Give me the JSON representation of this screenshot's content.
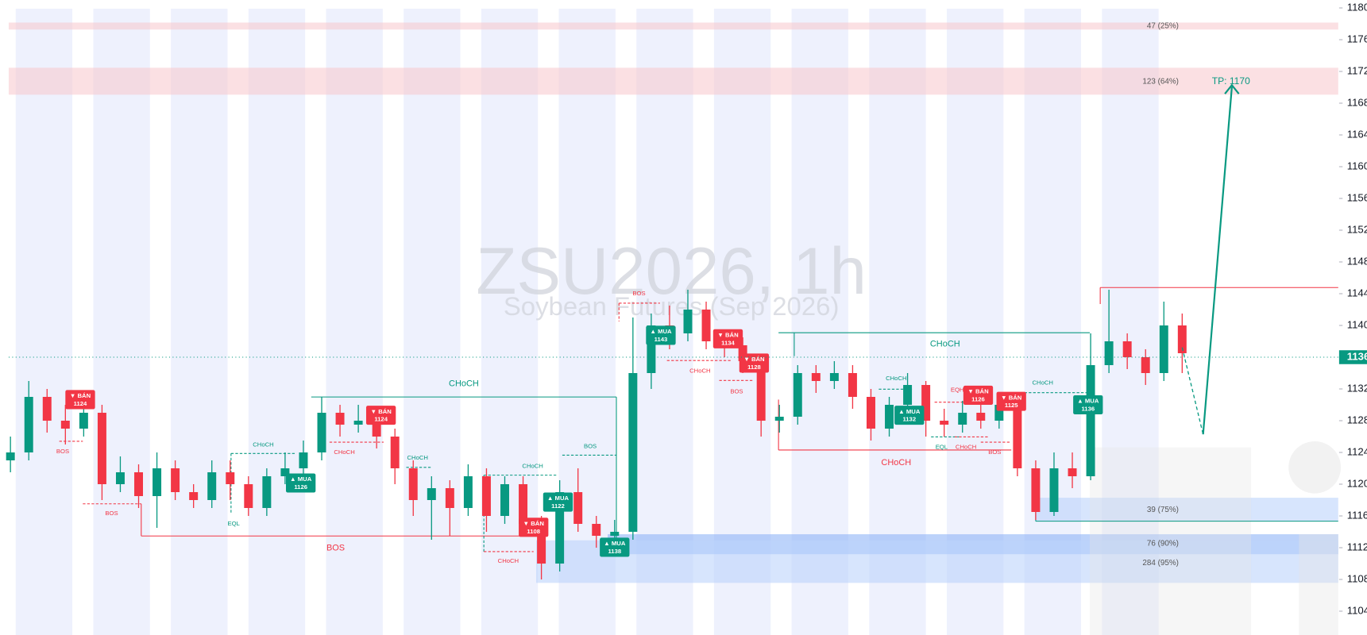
{
  "chart_data": {
    "type": "candlestick",
    "title": "ZSU2026, 1h",
    "subtitle": "Soybean Futures (Sep 2026)",
    "up_color": "#089981",
    "down_color": "#f23645",
    "ylim": [
      1101,
      1181
    ],
    "yticks": [
      1104,
      1108,
      1112,
      1116,
      1120,
      1124,
      1128,
      1132,
      1136,
      1140,
      1144,
      1148,
      1152,
      1156,
      1160,
      1164,
      1168,
      1172,
      1176,
      1180
    ],
    "open": [
      1123,
      1124,
      1131,
      1128,
      1127,
      1129,
      1120,
      1121.5,
      1118.5,
      1122,
      1119,
      1118,
      1121.5,
      1120,
      1117,
      1121,
      1122,
      1124,
      1129,
      1127.5,
      1128,
      1126,
      1122,
      1118,
      1119.5,
      1117,
      1121,
      1116,
      1120,
      1115,
      1110,
      1119,
      1115,
      1113.5,
      1114,
      1134,
      1140,
      1139,
      1142,
      1138,
      1137.5,
      1135.5,
      1128,
      1128.5,
      1134,
      1133,
      1134,
      1131,
      1127,
      1130,
      1132.5,
      1128,
      1127.5,
      1129,
      1128,
      1130,
      1122,
      1116.5,
      1122,
      1121,
      1135,
      1138,
      1136,
      1134,
      1140
    ],
    "high": [
      1126,
      1133,
      1132,
      1130,
      1131,
      1130,
      1123.5,
      1122.5,
      1124,
      1123,
      1120,
      1123,
      1123,
      1121,
      1122,
      1124,
      1125.5,
      1131,
      1130,
      1130,
      1129.5,
      1127,
      1123,
      1121,
      1120.5,
      1122.5,
      1122,
      1121,
      1121,
      1116,
      1120.5,
      1122,
      1116,
      1115.5,
      1141,
      1141.5,
      1142.5,
      1144.5,
      1143,
      1139.5,
      1138.5,
      1136,
      1130,
      1135,
      1135,
      1135.5,
      1135,
      1132,
      1131,
      1134,
      1133,
      1129.5,
      1130.5,
      1131,
      1131.5,
      1131,
      1123,
      1124,
      1124,
      1139,
      1144.5,
      1139,
      1137,
      1143,
      1141.5
    ],
    "low": [
      1121.5,
      1123,
      1126.5,
      1125,
      1126,
      1118,
      1119,
      1117,
      1114.5,
      1118,
      1117,
      1117,
      1118,
      1116,
      1116,
      1120,
      1121,
      1123,
      1126,
      1126.5,
      1124.5,
      1120,
      1116,
      1113,
      1113.5,
      1116,
      1114,
      1115,
      1113.5,
      1108,
      1109,
      1114,
      1112,
      1112.5,
      1113,
      1132,
      1137,
      1138,
      1137,
      1136,
      1134,
      1126,
      1126.5,
      1127.5,
      1131.5,
      1132,
      1129.5,
      1125.5,
      1126,
      1129,
      1126,
      1126,
      1126.5,
      1127,
      1127,
      1121,
      1115.5,
      1116,
      1119.5,
      1120.5,
      1134,
      1134.5,
      1132.5,
      1133,
      1134
    ],
    "close": [
      1124,
      1131,
      1128,
      1127,
      1129,
      1120,
      1121.5,
      1118.5,
      1122,
      1119,
      1118,
      1121.5,
      1120,
      1117,
      1121,
      1122,
      1124,
      1129,
      1127.5,
      1128,
      1126,
      1122,
      1118,
      1119.5,
      1117,
      1121,
      1116,
      1120,
      1115,
      1110,
      1119,
      1115,
      1113.5,
      1114,
      1134,
      1140,
      1139,
      1142,
      1138,
      1137.5,
      1135.5,
      1128,
      1128.5,
      1134,
      1133,
      1134,
      1131,
      1127,
      1130,
      1132.5,
      1128,
      1127.5,
      1129,
      1128,
      1130,
      1122,
      1116.5,
      1122,
      1121,
      1135,
      1138,
      1136,
      1134,
      1140,
      1136.5
    ],
    "last_price": 1136,
    "signals": [
      {
        "label": "▼ BÁN",
        "price": 1124
      },
      {
        "label": "▼ BÁN",
        "price": 1124
      },
      {
        "label": "▲ MUA",
        "price": 1126
      },
      {
        "label": "▲ MUA",
        "price": 1122
      },
      {
        "label": "▼ BÁN",
        "price": 1108
      },
      {
        "label": "▲ MUA",
        "price": 1138
      },
      {
        "label": "▲ MUA",
        "price": 1143
      },
      {
        "label": "▼ BÁN",
        "price": 1134
      },
      {
        "label": "▼ BÁN",
        "price": 1128
      },
      {
        "label": "▲ MUA",
        "price": 1132
      },
      {
        "label": "▼ BÁN",
        "price": 1126
      },
      {
        "label": "▼ BÁN",
        "price": 1125
      },
      {
        "label": "▲ MUA",
        "price": 1136
      }
    ],
    "structure_labels": [
      "BOS",
      "BOS",
      "EQL",
      "CHoCH",
      "BOS",
      "CHoCH",
      "CHoCH",
      "CHoCH",
      "CHoCH",
      "CHoCH",
      "BOS",
      "BOS",
      "CHoCH",
      "BOS",
      "CHoCH",
      "CHoCH",
      "CHoCH",
      "EQL",
      "CHoCH",
      "EQH",
      "BOS",
      "CHoCH"
    ],
    "zones": [
      "47 (25%)",
      "123 (64%)",
      "39 (75%)",
      "76 (90%)",
      "284 (95%)"
    ],
    "target": "TP: 1170"
  }
}
